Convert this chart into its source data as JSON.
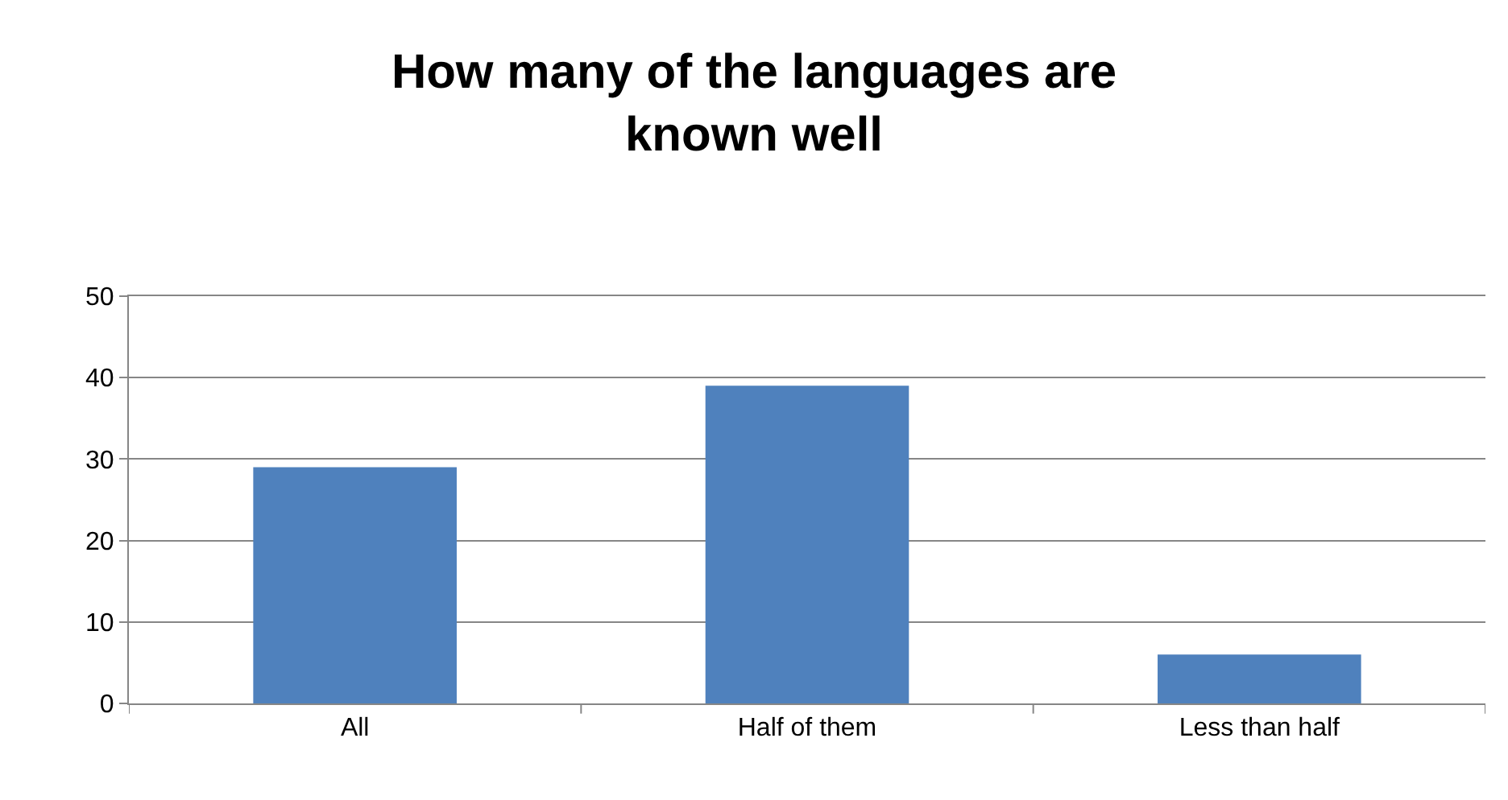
{
  "chart_data": {
    "type": "bar",
    "title": "How many of the languages are known well",
    "categories": [
      "All",
      "Half of them",
      "Less than half"
    ],
    "values": [
      29,
      39,
      6
    ],
    "color": "#4f81bd",
    "ylim": [
      0,
      50
    ],
    "yticks": [
      0,
      10,
      20,
      30,
      40,
      50
    ],
    "grid": "y"
  }
}
